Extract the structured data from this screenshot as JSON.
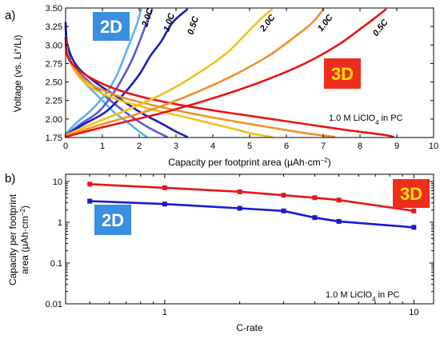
{
  "chart_data": [
    {
      "type": "line",
      "panel_label": "a)",
      "xlabel": "Capacity per footprint area (µAh·cm",
      "xlabel_sup": "−2",
      "xlabel_end": ")",
      "ylabel": "Voltage (vs. Li",
      "ylabel_sup": "+",
      "ylabel_end": "/Li)",
      "xlim": [
        0,
        10
      ],
      "ylim": [
        1.75,
        3.5
      ],
      "xticks": [
        0,
        1,
        2,
        3,
        4,
        5,
        6,
        7,
        8,
        9,
        10
      ],
      "yticks": [
        1.75,
        2.0,
        2.25,
        2.5,
        2.75,
        3.0,
        3.25,
        3.5
      ],
      "ytick_labels": [
        "1.75",
        "2.00",
        "2.25",
        "2.50",
        "2.75",
        "3.00",
        "3.25",
        "3.50"
      ],
      "annotation": {
        "pre": "1.0 M LiClO",
        "sub": "4",
        "post": " in PC"
      },
      "group_labels": [
        {
          "text": "2D",
          "color": "#3a8fe0"
        },
        {
          "text": "3D",
          "color": "#ee2d1d"
        }
      ],
      "series": [
        {
          "group": "2D",
          "label": "2.0C",
          "color": "#5ab4ea",
          "kind": "discharge",
          "points": [
            [
              0,
              3.25
            ],
            [
              0.05,
              2.95
            ],
            [
              0.2,
              2.7
            ],
            [
              0.5,
              2.5
            ],
            [
              0.9,
              2.3
            ],
            [
              1.3,
              2.1
            ],
            [
              1.7,
              1.95
            ],
            [
              2.0,
              1.83
            ],
            [
              2.2,
              1.76
            ]
          ]
        },
        {
          "group": "2D",
          "label": "1.0C",
          "color": "#5b58d6",
          "kind": "discharge",
          "points": [
            [
              0,
              3.25
            ],
            [
              0.05,
              2.95
            ],
            [
              0.2,
              2.72
            ],
            [
              0.6,
              2.52
            ],
            [
              1.1,
              2.3
            ],
            [
              1.6,
              2.1
            ],
            [
              2.1,
              1.93
            ],
            [
              2.5,
              1.82
            ],
            [
              2.75,
              1.76
            ]
          ]
        },
        {
          "group": "2D",
          "label": "0.5C",
          "color": "#1820b8",
          "kind": "discharge",
          "points": [
            [
              0,
              3.3
            ],
            [
              0.05,
              3.0
            ],
            [
              0.3,
              2.72
            ],
            [
              0.8,
              2.5
            ],
            [
              1.4,
              2.3
            ],
            [
              2.0,
              2.1
            ],
            [
              2.6,
              1.94
            ],
            [
              3.0,
              1.83
            ],
            [
              3.3,
              1.76
            ]
          ]
        },
        {
          "group": "2D",
          "label": "2.0C",
          "color": "#5ab4ea",
          "kind": "charge",
          "points": [
            [
              0,
              1.8
            ],
            [
              0.3,
              1.95
            ],
            [
              0.7,
              2.12
            ],
            [
              1.1,
              2.35
            ],
            [
              1.4,
              2.6
            ],
            [
              1.6,
              2.85
            ],
            [
              1.8,
              3.1
            ],
            [
              1.95,
              3.3
            ],
            [
              2.05,
              3.48
            ]
          ]
        },
        {
          "group": "2D",
          "label": "1.0C",
          "color": "#5b58d6",
          "kind": "charge",
          "points": [
            [
              0,
              1.78
            ],
            [
              0.4,
              1.93
            ],
            [
              0.9,
              2.1
            ],
            [
              1.3,
              2.35
            ],
            [
              1.6,
              2.6
            ],
            [
              1.85,
              2.85
            ],
            [
              2.05,
              3.1
            ],
            [
              2.2,
              3.3
            ],
            [
              2.35,
              3.48
            ]
          ]
        },
        {
          "group": "2D",
          "label": "0.5C",
          "color": "#1820b8",
          "kind": "charge",
          "points": [
            [
              0,
              1.78
            ],
            [
              0.5,
              1.93
            ],
            [
              1.1,
              2.1
            ],
            [
              1.6,
              2.35
            ],
            [
              2.0,
              2.6
            ],
            [
              2.3,
              2.85
            ],
            [
              2.6,
              3.05
            ],
            [
              2.9,
              3.3
            ],
            [
              3.3,
              3.48
            ]
          ]
        },
        {
          "group": "3D",
          "label": "2.0C",
          "color": "#f2c21a",
          "kind": "discharge",
          "points": [
            [
              0,
              3.1
            ],
            [
              0.1,
              2.8
            ],
            [
              0.5,
              2.5
            ],
            [
              1.2,
              2.3
            ],
            [
              2.2,
              2.15
            ],
            [
              3.3,
              2.02
            ],
            [
              4.3,
              1.9
            ],
            [
              5.1,
              1.8
            ],
            [
              5.6,
              1.76
            ]
          ]
        },
        {
          "group": "3D",
          "label": "1.0C",
          "color": "#f0902a",
          "kind": "discharge",
          "points": [
            [
              0,
              3.1
            ],
            [
              0.1,
              2.8
            ],
            [
              0.6,
              2.5
            ],
            [
              1.5,
              2.3
            ],
            [
              2.7,
              2.15
            ],
            [
              4.0,
              2.02
            ],
            [
              5.4,
              1.9
            ],
            [
              6.5,
              1.81
            ],
            [
              7.3,
              1.76
            ]
          ]
        },
        {
          "group": "3D",
          "label": "0.5C",
          "color": "#e81515",
          "kind": "discharge",
          "points": [
            [
              0,
              3.1
            ],
            [
              0.1,
              2.8
            ],
            [
              0.7,
              2.55
            ],
            [
              1.7,
              2.35
            ],
            [
              3.0,
              2.2
            ],
            [
              4.5,
              2.08
            ],
            [
              6.0,
              1.97
            ],
            [
              7.5,
              1.86
            ],
            [
              8.6,
              1.79
            ],
            [
              8.9,
              1.76
            ]
          ]
        },
        {
          "group": "3D",
          "label": "2.0C",
          "color": "#f2c21a",
          "kind": "charge",
          "points": [
            [
              0,
              1.78
            ],
            [
              0.8,
              1.95
            ],
            [
              1.8,
              2.15
            ],
            [
              2.8,
              2.38
            ],
            [
              3.7,
              2.65
            ],
            [
              4.4,
              2.9
            ],
            [
              4.9,
              3.15
            ],
            [
              5.3,
              3.35
            ],
            [
              5.6,
              3.48
            ]
          ]
        },
        {
          "group": "3D",
          "label": "1.0C",
          "color": "#f0902a",
          "kind": "charge",
          "points": [
            [
              0,
              1.77
            ],
            [
              1.0,
              1.93
            ],
            [
              2.3,
              2.12
            ],
            [
              3.5,
              2.35
            ],
            [
              4.6,
              2.6
            ],
            [
              5.5,
              2.85
            ],
            [
              6.2,
              3.1
            ],
            [
              6.7,
              3.3
            ],
            [
              7.0,
              3.48
            ]
          ]
        },
        {
          "group": "3D",
          "label": "0.5C",
          "color": "#e81515",
          "kind": "charge",
          "points": [
            [
              0,
              1.76
            ],
            [
              1.1,
              1.9
            ],
            [
              2.6,
              2.08
            ],
            [
              4.0,
              2.28
            ],
            [
              5.3,
              2.5
            ],
            [
              6.5,
              2.75
            ],
            [
              7.4,
              3.0
            ],
            [
              8.1,
              3.25
            ],
            [
              8.7,
              3.48
            ]
          ]
        }
      ]
    },
    {
      "type": "line",
      "panel_label": "b)",
      "xlabel": "C-rate",
      "ylabel": "Capacity per footprint",
      "ylabel_line2_pre": "area (µAh·cm",
      "ylabel_line2_sup": "−2",
      "ylabel_line2_end": ")",
      "xscale": "log",
      "yscale": "log",
      "xlim": [
        0.4,
        12
      ],
      "ylim": [
        0.01,
        15
      ],
      "xticks": [
        1,
        10
      ],
      "xtick_labels": [
        "1",
        "10"
      ],
      "yticks": [
        0.01,
        0.1,
        1,
        10
      ],
      "ytick_labels": [
        "0.01",
        "0.1",
        "1",
        "10"
      ],
      "annotation": {
        "pre": "1.0 M LiClO",
        "sub": "4",
        "post": " in PC"
      },
      "group_labels": [
        {
          "text": "2D",
          "color": "#3a8fe0"
        },
        {
          "text": "3D",
          "color": "#ee2d1d"
        }
      ],
      "series": [
        {
          "group": "3D",
          "color": "#e81515",
          "x": [
            0.5,
            1,
            2,
            3,
            4,
            5,
            10
          ],
          "y": [
            8.6,
            7.0,
            5.6,
            4.6,
            4.0,
            3.5,
            1.9
          ]
        },
        {
          "group": "2D",
          "color": "#1a1ad0",
          "x": [
            0.5,
            1,
            2,
            3,
            4,
            5,
            10
          ],
          "y": [
            3.3,
            2.8,
            2.2,
            1.9,
            1.3,
            1.05,
            0.75
          ]
        }
      ]
    }
  ]
}
